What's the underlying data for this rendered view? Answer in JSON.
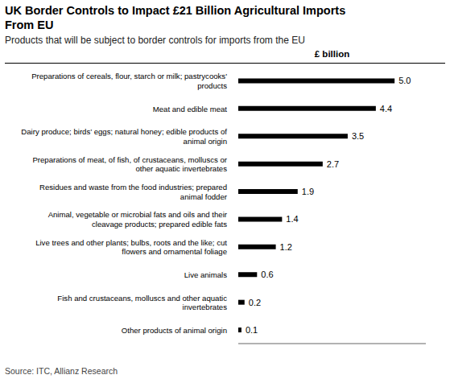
{
  "chart_data": {
    "type": "bar",
    "title": "UK Border Controls to Impact £21 Billion Agricultural Imports\nFrom EU",
    "subtitle": "Products that will be subject to border controls for imports from the EU",
    "xlabel": "£ billion",
    "annotations": [
      "Source: ITC, Allianz Research"
    ],
    "categories": [
      "Preparations of cereals, flour, starch or milk; pastrycooks'\nproducts",
      "Meat and edible meat",
      "Dairy produce; birds’ eggs; natural honey; edible products of\nanimal origin",
      "Preparations of meat, of fish, of crustaceans, molluscs or\nother aquatic invertebrates",
      "Residues and waste from the food industries; prepared\nanimal fodder",
      "Animal, vegetable or microbial fats and oils and their\ncleavage products; prepared edible fats",
      "Live trees and other plants; bulbs, roots and the like; cut\nflowers and ornamental foliage",
      "Live animals",
      "Fish and crustaceans, molluscs and other aquatic\ninvertebrates",
      "Other products of animal origin"
    ],
    "values": [
      5.0,
      4.4,
      3.5,
      2.7,
      1.9,
      1.4,
      1.2,
      0.6,
      0.2,
      0.1
    ],
    "value_labels": [
      "5.0",
      "4.4",
      "3.5",
      "2.7",
      "1.9",
      "1.4",
      "1.2",
      "0.6",
      "0.2",
      "0.1"
    ],
    "color": "#000000",
    "orientation": "horizontal",
    "data_labels": true,
    "tick_labels": false,
    "xlim": [
      0,
      6
    ],
    "grid": false
  }
}
